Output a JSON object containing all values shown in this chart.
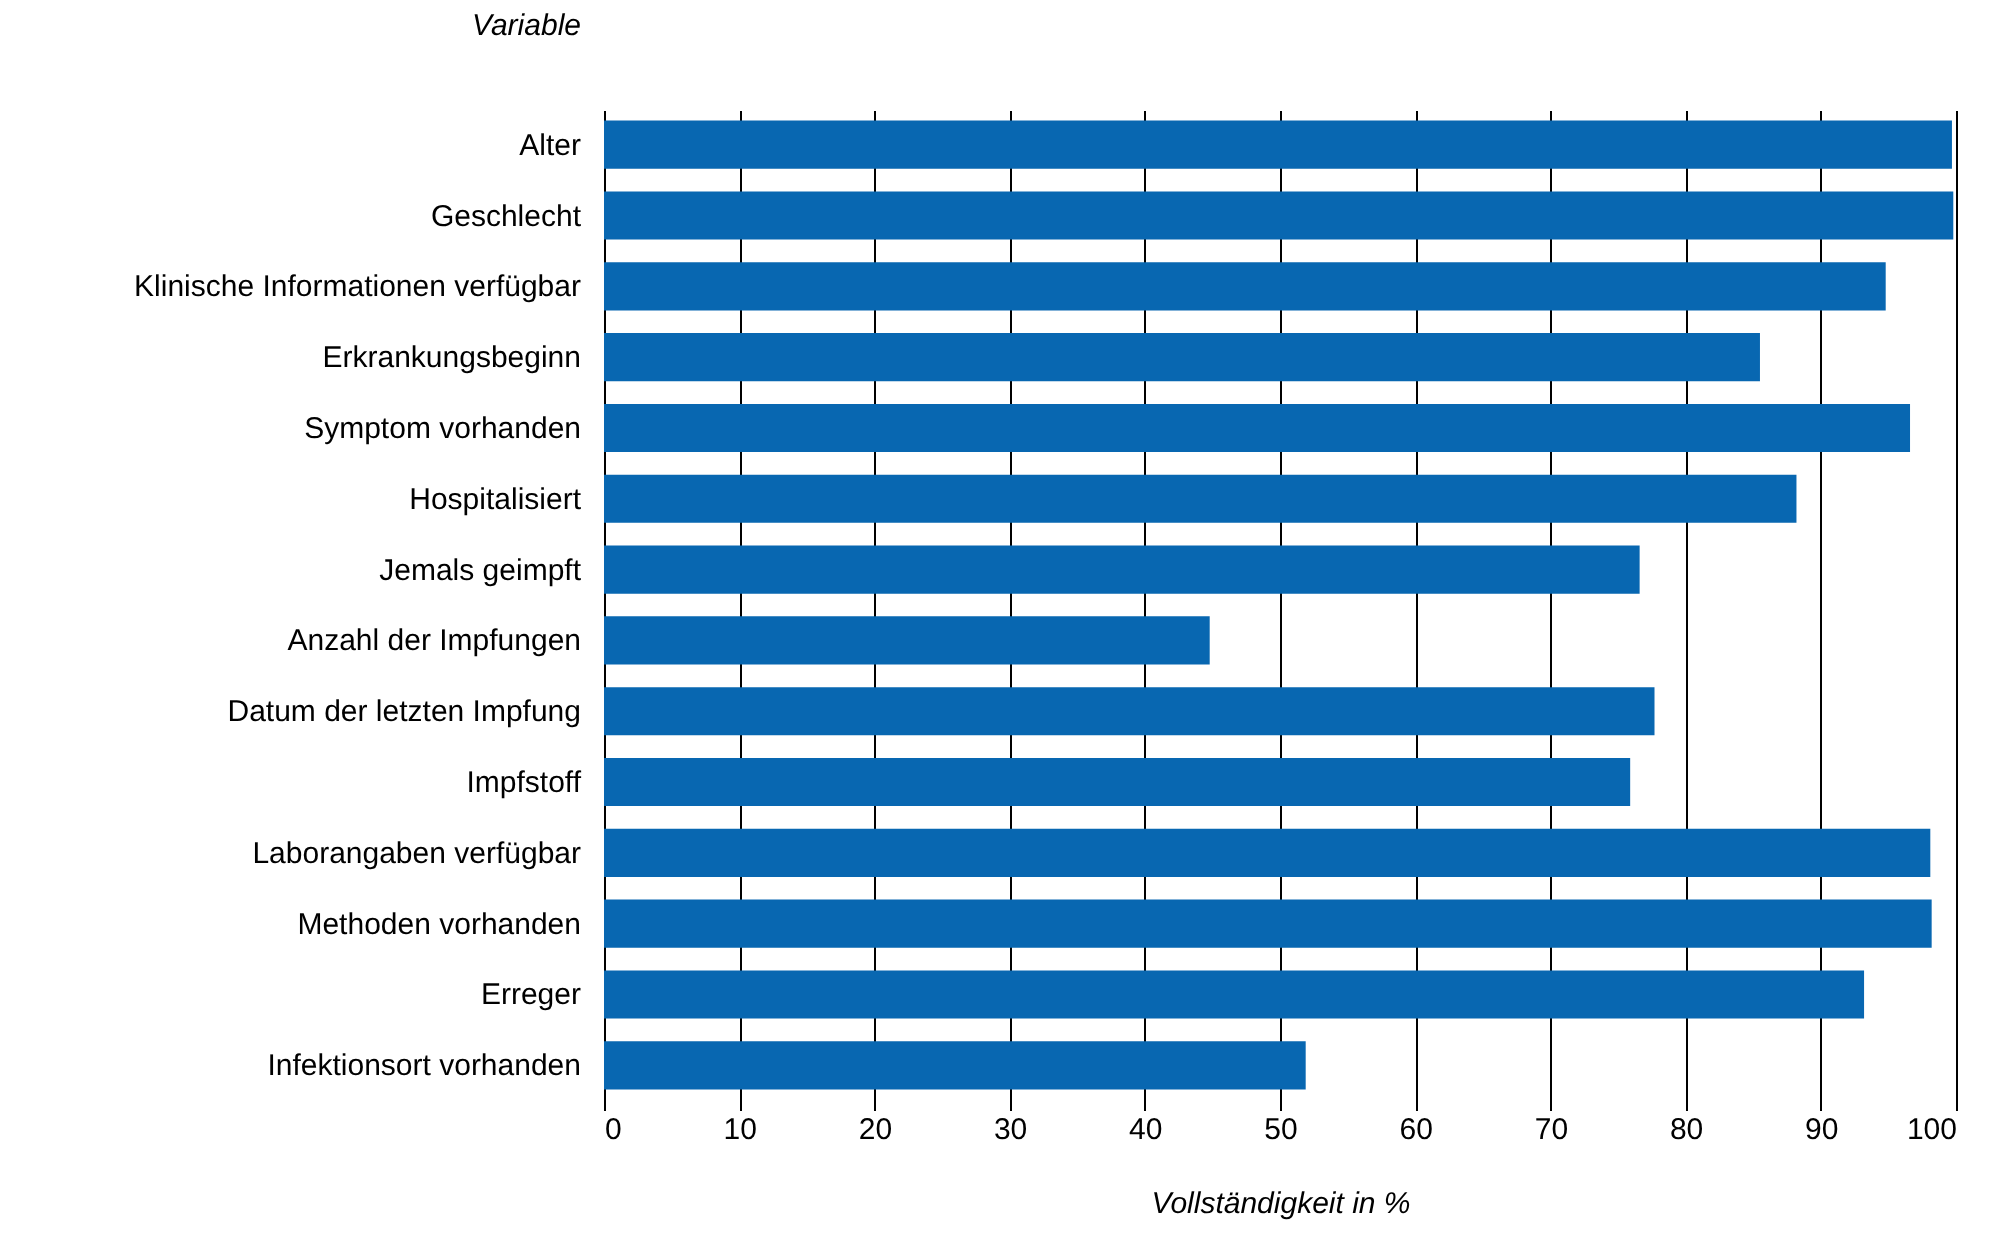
{
  "chart_data": {
    "type": "bar",
    "orientation": "horizontal",
    "xlabel": "Vollständigkeit in %",
    "ylabel": "Variable",
    "categories": [
      "Alter",
      "Geschlecht",
      "Klinische Informationen verfügbar",
      "Erkrankungsbeginn",
      "Symptom vorhanden",
      "Hospitalisiert",
      "Jemals geimpft",
      "Anzahl der Impfungen",
      "Datum der letzten Impfung",
      "Impfstoff",
      "Laborangaben verfügbar",
      "Methoden vorhanden",
      "Erreger",
      "Infektionsort vorhanden"
    ],
    "values": [
      99.7,
      99.8,
      94.8,
      85.5,
      96.6,
      88.2,
      76.6,
      44.8,
      77.7,
      75.9,
      98.1,
      98.2,
      93.2,
      51.9
    ],
    "color": "#0867b1",
    "xlim": [
      0,
      100
    ],
    "xticks": [
      0,
      10,
      20,
      30,
      40,
      50,
      60,
      70,
      80,
      90,
      100
    ],
    "grid": "x"
  }
}
